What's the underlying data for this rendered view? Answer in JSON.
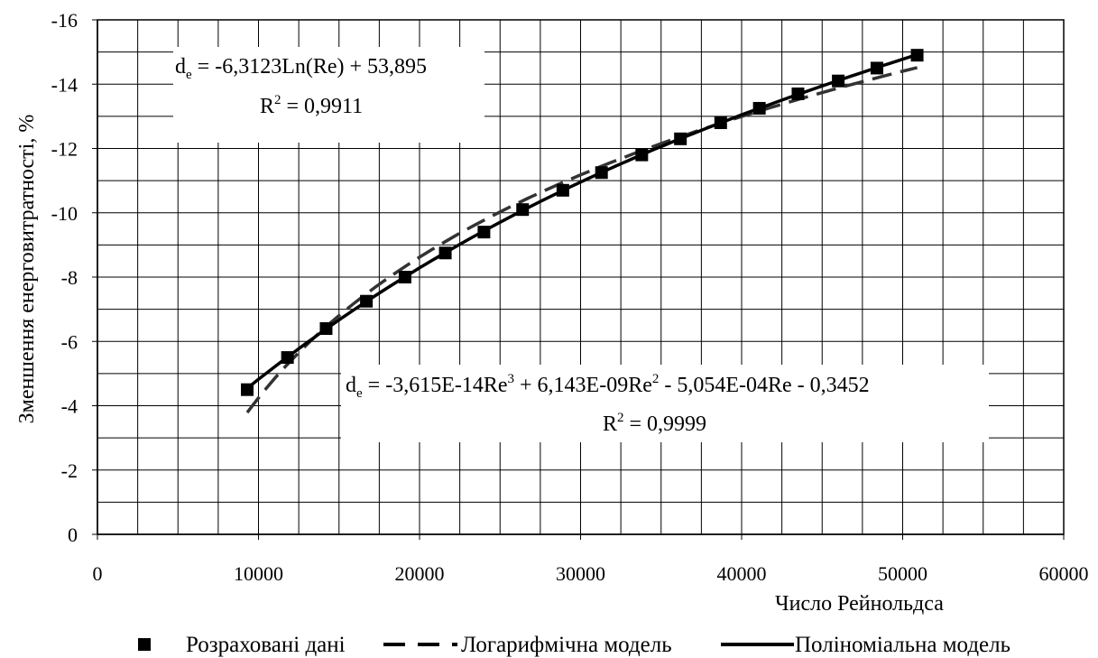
{
  "chart_data": {
    "type": "scatter",
    "xlabel": "Число Рейнольдса",
    "ylabel": "Зменшення енерговитратності, %",
    "xlim": [
      0,
      60000
    ],
    "ylim": [
      0,
      -16
    ],
    "y_axis_inverted": true,
    "grid": true,
    "xticks": [
      "0",
      "10000",
      "20000",
      "30000",
      "40000",
      "50000",
      "60000"
    ],
    "yticks": [
      "0",
      "-2",
      "-4",
      "-6",
      "-8",
      "-10",
      "-12",
      "-14",
      "-16"
    ],
    "legend_position": "bottom",
    "series": [
      {
        "name": "Розраховані дані",
        "style": "markers",
        "x": [
          9300,
          11800,
          14200,
          16700,
          19100,
          21600,
          24000,
          26400,
          28900,
          31300,
          33800,
          36200,
          38700,
          41100,
          43500,
          46000,
          48400,
          50900
        ],
        "y": [
          -4.5,
          -5.5,
          -6.4,
          -7.25,
          -8.0,
          -8.75,
          -9.4,
          -10.1,
          -10.7,
          -11.25,
          -11.8,
          -12.3,
          -12.8,
          -13.25,
          -13.7,
          -14.1,
          -14.5,
          -14.9
        ]
      },
      {
        "name": "Логарифмічна модель",
        "style": "dashed",
        "equation": "de = -6.3123·Ln(Re) + 53.895",
        "x_range": [
          9300,
          50900
        ]
      },
      {
        "name": "Поліноміальна модель",
        "style": "solid",
        "equation": "de = -3.615E-14·Re³ + 6.143E-09·Re² - 5.054E-04·Re - 0.3452",
        "x_range": [
          9300,
          50900
        ]
      }
    ],
    "annotations": {
      "log": {
        "lhs": "d",
        "lhs_sub": "e",
        "rhs": " = -6,3123Ln(Re) + 53,895",
        "r2_a": "R",
        "r2_sup": "2",
        "r2_b": " = 0,9911"
      },
      "poly": {
        "lhs": "d",
        "lhs_sub": "e",
        "t1": " = -3,615E-14Re",
        "t1_sup": "3",
        "t2": " + 6,143E-09Re",
        "t2_sup": "2",
        "t3": " - 5,054E-04Re - 0,3452",
        "r2_a": "R",
        "r2_sup": "2",
        "r2_b": " = 0,9999"
      }
    },
    "colors": {
      "data": "#000000",
      "log_model": "#333333",
      "poly_model": "#000000",
      "grid": "#000000"
    }
  }
}
